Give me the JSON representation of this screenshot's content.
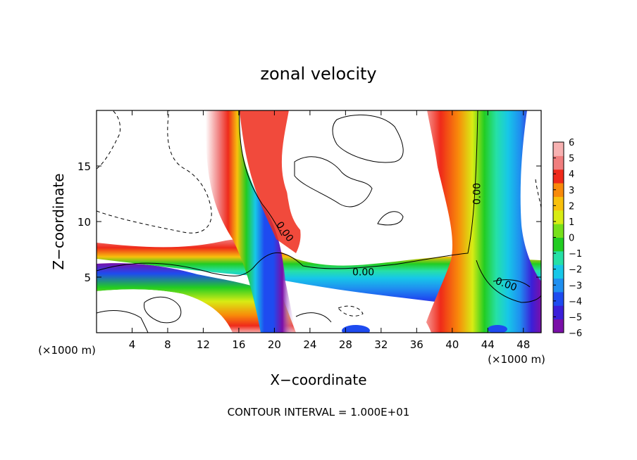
{
  "chart_data": {
    "type": "heatmap",
    "title": "zonal velocity",
    "xlabel": "X−coordinate",
    "ylabel": "Z−coordinate",
    "x_unit_left": "(×1000 m)",
    "x_unit_right": "(×1000 m)",
    "xlim": [
      0,
      50
    ],
    "ylim": [
      0,
      20
    ],
    "x_ticks": [
      4,
      8,
      12,
      16,
      20,
      24,
      28,
      32,
      36,
      40,
      44,
      48
    ],
    "y_ticks": [
      5,
      10,
      15
    ],
    "colorbar": {
      "min": -6,
      "max": 6,
      "ticks": [
        6,
        5,
        4,
        3,
        2,
        1,
        0,
        -1,
        -2,
        -3,
        -4,
        -5,
        -6
      ],
      "tick_labels": [
        "6",
        "5",
        "4",
        "3",
        "2",
        "1",
        "0",
        "−1",
        "−2",
        "−3",
        "−4",
        "−5",
        "−6"
      ],
      "colors": [
        "#7a0fa8",
        "#3b1fd8",
        "#1e4bf0",
        "#1f8ff0",
        "#17c7e8",
        "#26e0a6",
        "#22cc22",
        "#77e01a",
        "#d8ec14",
        "#f8c00c",
        "#f88a0a",
        "#ef2a1a",
        "#f07e7e",
        "#f7b1b1"
      ]
    },
    "contour_labels": [
      "0.00",
      "0.00",
      "0.00",
      "0.00"
    ],
    "footer": "CONTOUR INTERVAL = 1.000E+01"
  }
}
